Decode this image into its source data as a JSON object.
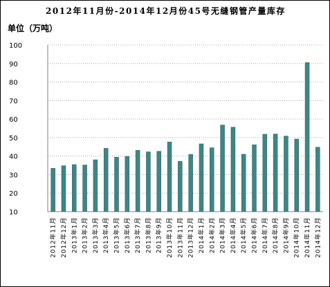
{
  "title": "2012年11月份-2014年12月份45号无缝钢管产量库存",
  "unit_label": "单位（万吨）",
  "colors": {
    "bar": "#3f8585",
    "bar_edge": "#2c6464",
    "grid": "#a8a8a8",
    "axis": "#808080"
  },
  "chart_data": {
    "type": "bar",
    "title": "2012年11月份-2014年12月份45号无缝钢管产量库存",
    "ylabel": "单位（万吨）",
    "ylim": [
      10,
      100
    ],
    "yticks": [
      10,
      20,
      30,
      40,
      50,
      60,
      70,
      80,
      90,
      100
    ],
    "grid": true,
    "categories": [
      "2012年11月",
      "2012年12月",
      "2013年1月",
      "2013年2月",
      "2013年3月",
      "2013年4月",
      "2013年5月",
      "2013年6月",
      "2013年7月",
      "2013年8月",
      "2013年9月",
      "2013年10月",
      "2013年11月",
      "2013年12月",
      "2014年1月",
      "2014年2月",
      "2014年3月",
      "2014年4月",
      "2014年5月",
      "2014年6月",
      "2014年7月",
      "2014年8月",
      "2014年9月",
      "2014年10月",
      "2014年11月",
      "2014年12月"
    ],
    "values": [
      33.4,
      34.8,
      35.4,
      35.2,
      38.0,
      44.2,
      39.4,
      39.8,
      43.1,
      42.3,
      42.6,
      47.6,
      37.2,
      40.9,
      46.6,
      44.5,
      56.8,
      55.6,
      41.0,
      46.1,
      51.8,
      51.9,
      50.8,
      49.2,
      90.5,
      44.8
    ]
  }
}
